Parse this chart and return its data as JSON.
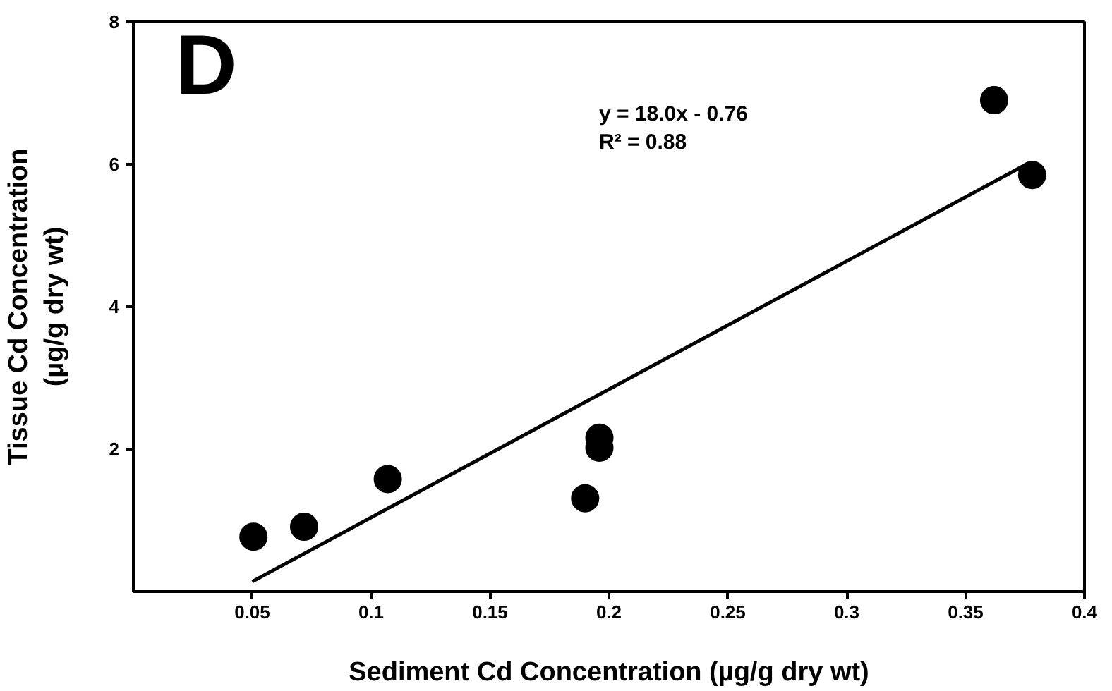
{
  "chart_data": {
    "type": "scatter",
    "xlabel": "Sediment Cd Concentration (µg/g dry wt)",
    "ylabel": "Tissue Cd Concentration\n(µg/g dry wt)",
    "annotations": [
      "D",
      "y = 18.0x - 0.76",
      "R² = 0.88"
    ],
    "series": [
      {
        "color": "#000000",
        "marker": "circle",
        "x": [
          0.0505,
          0.0718,
          0.107,
          0.19,
          0.196,
          0.196,
          0.362,
          0.378
        ],
        "values": [
          0.77,
          0.91,
          1.58,
          1.31,
          2.16,
          2.02,
          6.9,
          5.85
        ]
      },
      {
        "type": "line",
        "color": "#000000",
        "marker": "none",
        "x": [
          0.05,
          0.375
        ],
        "values": [
          0.14,
          5.99
        ]
      }
    ],
    "xlim": [
      0,
      0.4
    ],
    "ylim": [
      0,
      8
    ],
    "xticks": [
      0.05,
      0.1,
      0.15,
      0.2,
      0.25,
      0.3,
      0.35,
      0.4
    ],
    "yticks": [
      2,
      4,
      6,
      8
    ]
  }
}
